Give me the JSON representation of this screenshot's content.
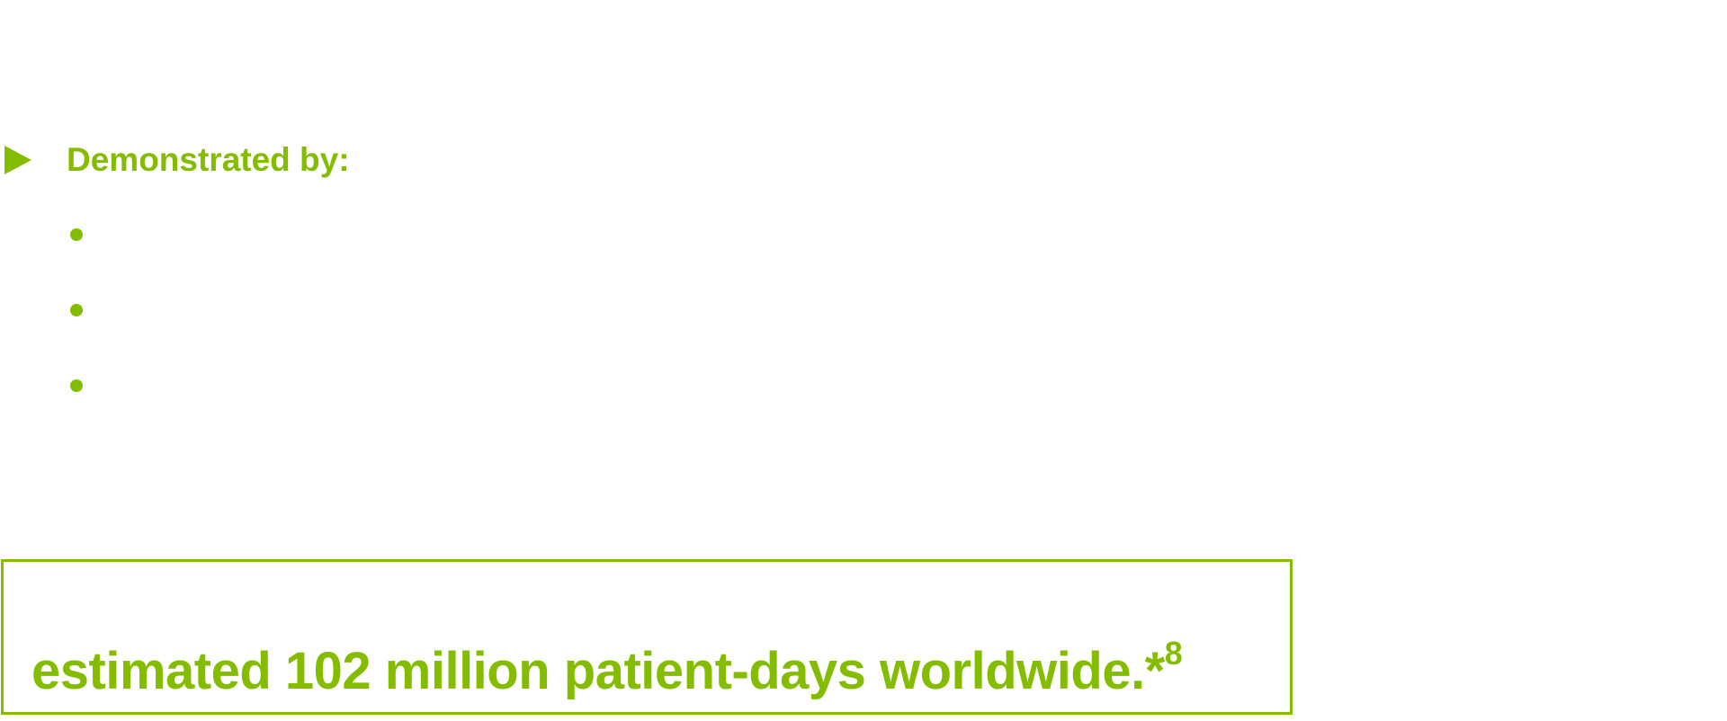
{
  "section": {
    "heading": "Demonstrated by:",
    "accent_color": "#84bd00",
    "arrow_icon": "play-arrow-icon",
    "bullets": [
      "",
      "",
      ""
    ]
  },
  "callout": {
    "text": "estimated 102 million patient-days worldwide.*",
    "superscript": "8"
  }
}
